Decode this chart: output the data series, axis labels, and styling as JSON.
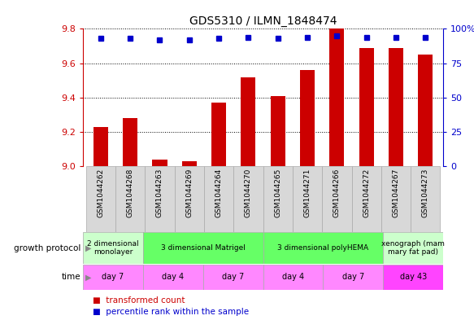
{
  "title": "GDS5310 / ILMN_1848474",
  "samples": [
    "GSM1044262",
    "GSM1044268",
    "GSM1044263",
    "GSM1044269",
    "GSM1044264",
    "GSM1044270",
    "GSM1044265",
    "GSM1044271",
    "GSM1044266",
    "GSM1044272",
    "GSM1044267",
    "GSM1044273"
  ],
  "bar_values": [
    9.23,
    9.28,
    9.04,
    9.03,
    9.37,
    9.52,
    9.41,
    9.56,
    9.8,
    9.69,
    9.69,
    9.65
  ],
  "percentile_values": [
    93,
    93,
    92,
    92,
    93,
    94,
    93,
    94,
    95,
    94,
    94,
    94
  ],
  "bar_color": "#cc0000",
  "dot_color": "#0000cc",
  "ylim_left": [
    9.0,
    9.8
  ],
  "ylim_right": [
    0,
    100
  ],
  "yticks_left": [
    9.0,
    9.2,
    9.4,
    9.6,
    9.8
  ],
  "yticks_right": [
    0,
    25,
    50,
    75,
    100
  ],
  "grid_values": [
    9.2,
    9.4,
    9.6
  ],
  "growth_protocol_groups": [
    {
      "label": "2 dimensional\nmonolayer",
      "start": 0,
      "end": 2,
      "color": "#ccffcc"
    },
    {
      "label": "3 dimensional Matrigel",
      "start": 2,
      "end": 6,
      "color": "#66ff66"
    },
    {
      "label": "3 dimensional polyHEMA",
      "start": 6,
      "end": 10,
      "color": "#66ff66"
    },
    {
      "label": "xenograph (mam\nmary fat pad)",
      "start": 10,
      "end": 12,
      "color": "#ccffcc"
    }
  ],
  "time_groups": [
    {
      "label": "day 7",
      "start": 0,
      "end": 2,
      "color": "#ff88ff"
    },
    {
      "label": "day 4",
      "start": 2,
      "end": 4,
      "color": "#ff88ff"
    },
    {
      "label": "day 7",
      "start": 4,
      "end": 6,
      "color": "#ff88ff"
    },
    {
      "label": "day 4",
      "start": 6,
      "end": 8,
      "color": "#ff88ff"
    },
    {
      "label": "day 7",
      "start": 8,
      "end": 10,
      "color": "#ff88ff"
    },
    {
      "label": "day 43",
      "start": 10,
      "end": 12,
      "color": "#ff44ff"
    }
  ],
  "growth_protocol_label": "growth protocol",
  "time_label": "time",
  "legend_items": [
    {
      "label": "transformed count",
      "color": "#cc0000"
    },
    {
      "label": "percentile rank within the sample",
      "color": "#0000cc"
    }
  ],
  "bar_width": 0.5,
  "background_color": "#ffffff",
  "axis_color_left": "#cc0000",
  "axis_color_right": "#0000cc",
  "sample_bg_color": "#d8d8d8"
}
